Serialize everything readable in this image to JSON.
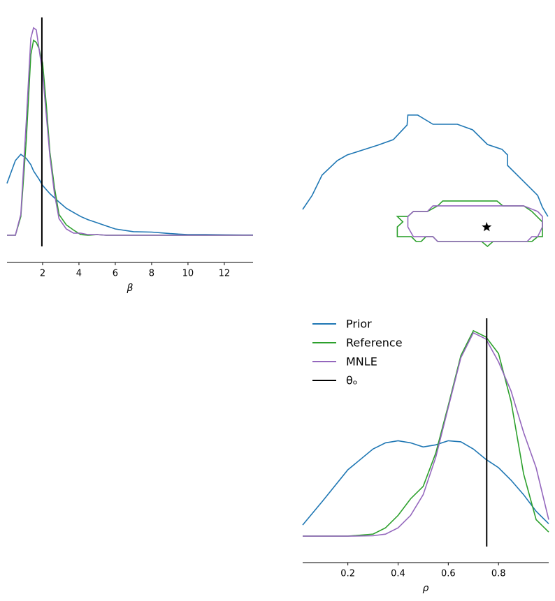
{
  "chart_data": [
    {
      "type": "line",
      "xlabel": "β",
      "x": [
        0.04,
        0.5,
        0.8,
        1.1,
        1.35,
        1.5,
        1.65,
        1.8,
        2,
        2.2,
        2.4,
        2.65,
        2.9,
        3.3,
        3.7,
        4.1,
        4.5,
        5,
        5.5,
        6,
        7,
        8,
        9,
        10,
        11,
        12,
        13,
        13.58
      ],
      "series": [
        {
          "name": "Prior",
          "color": "#1f77b4",
          "values": [
            0.25,
            0.36,
            0.39,
            0.37,
            0.34,
            0.31,
            0.29,
            0.27,
            0.24,
            0.22,
            0.2,
            0.18,
            0.16,
            0.13,
            0.11,
            0.09,
            0.075,
            0.06,
            0.045,
            0.03,
            0.017,
            0.015,
            0.008,
            0.003,
            0.003,
            0.002,
            0.001,
            0.001
          ]
        },
        {
          "name": "Reference",
          "color": "#2ca02c",
          "values": [
            0,
            0,
            0.09,
            0.46,
            0.87,
            0.94,
            0.93,
            0.9,
            0.83,
            0.63,
            0.4,
            0.23,
            0.1,
            0.05,
            0.025,
            0.003,
            0,
            0.003,
            0,
            0,
            0,
            0,
            0,
            0,
            0,
            0,
            0,
            0
          ]
        },
        {
          "name": "MNLE",
          "color": "#9467bd",
          "values": [
            0,
            0,
            0.1,
            0.55,
            0.95,
            1.0,
            0.99,
            0.9,
            0.78,
            0.58,
            0.38,
            0.2,
            0.08,
            0.03,
            0.01,
            0.01,
            0.003,
            0.003,
            0,
            0,
            0,
            0,
            0,
            0,
            0,
            0,
            0,
            0
          ]
        }
      ],
      "reference_line": {
        "value": 1.96,
        "color": "#000000"
      },
      "xlim": [
        0.04,
        13.58
      ],
      "xticks": [
        2,
        4,
        6,
        8,
        10,
        12
      ],
      "ylim": [
        -0.054,
        1.05
      ]
    },
    {
      "type": "contour",
      "series": [
        {
          "name": "Prior",
          "color": "#1f77b4",
          "closed": false,
          "x": [
            0.02,
            0.058,
            0.097,
            0.158,
            0.197,
            0.258,
            0.319,
            0.381,
            0.436,
            0.439,
            0.478,
            0.539,
            0.636,
            0.697,
            0.756,
            0.814,
            0.836,
            0.836,
            0.956,
            0.975,
            0.997
          ],
          "y": [
            2.94,
            3.72,
            4.84,
            5.65,
            5.96,
            6.23,
            6.5,
            6.81,
            7.62,
            8.17,
            8.17,
            7.66,
            7.66,
            7.35,
            6.54,
            6.27,
            5.96,
            5.38,
            3.72,
            3.06,
            2.55
          ]
        },
        {
          "name": "Reference",
          "color": "#2ca02c",
          "closed": true,
          "x": [
            0.397,
            0.419,
            0.397,
            0.397,
            0.453,
            0.472,
            0.492,
            0.511,
            0.539,
            0.558,
            0.733,
            0.756,
            0.778,
            0.933,
            0.956,
            0.975,
            0.975,
            0.933,
            0.9,
            0.817,
            0.794,
            0.578,
            0.558,
            0.517,
            0.461,
            0.439
          ],
          "y": [
            2.55,
            2.25,
            1.97,
            1.43,
            1.43,
            1.16,
            1.16,
            1.43,
            1.43,
            1.16,
            1.16,
            0.89,
            1.16,
            1.16,
            1.43,
            1.43,
            2.25,
            2.83,
            3.14,
            3.14,
            3.41,
            3.41,
            3.14,
            2.83,
            2.83,
            2.55
          ]
        },
        {
          "name": "MNLE",
          "color": "#9467bd",
          "closed": true,
          "x": [
            0.439,
            0.461,
            0.517,
            0.539,
            0.9,
            0.956,
            0.975,
            0.975,
            0.956,
            0.933,
            0.914,
            0.558,
            0.539,
            0.461,
            0.439
          ],
          "y": [
            2.55,
            2.83,
            2.83,
            3.14,
            3.14,
            2.83,
            2.55,
            1.97,
            1.43,
            1.43,
            1.16,
            1.16,
            1.43,
            1.43,
            1.97
          ]
        }
      ],
      "star": {
        "x": 0.753,
        "y": 1.96,
        "color": "#000000"
      },
      "xlim": [
        0.02,
        1.0
      ],
      "ylim": [
        0.04,
        13.58
      ]
    },
    {
      "type": "line",
      "xlabel": "ρ",
      "x": [
        0.02,
        0.1,
        0.2,
        0.3,
        0.35,
        0.4,
        0.45,
        0.5,
        0.55,
        0.6,
        0.65,
        0.7,
        0.75,
        0.8,
        0.85,
        0.9,
        0.95,
        1.0
      ],
      "series": [
        {
          "name": "Prior",
          "color": "#1f77b4",
          "values": [
            0.054,
            0.17,
            0.32,
            0.42,
            0.45,
            0.46,
            0.45,
            0.43,
            0.44,
            0.46,
            0.455,
            0.42,
            0.37,
            0.33,
            0.27,
            0.2,
            0.12,
            0.06
          ]
        },
        {
          "name": "Reference",
          "color": "#2ca02c",
          "values": [
            0,
            0,
            0,
            0.01,
            0.04,
            0.1,
            0.18,
            0.24,
            0.4,
            0.63,
            0.87,
            0.99,
            0.96,
            0.88,
            0.65,
            0.3,
            0.08,
            0.02
          ]
        },
        {
          "name": "MNLE",
          "color": "#9467bd",
          "values": [
            0,
            0,
            0,
            0.002,
            0.01,
            0.04,
            0.1,
            0.2,
            0.38,
            0.62,
            0.86,
            0.98,
            0.95,
            0.84,
            0.7,
            0.5,
            0.33,
            0.08
          ]
        }
      ],
      "reference_line": {
        "name": "θₒ",
        "value": 0.753,
        "color": "#000000"
      },
      "legend": "upper left",
      "xlim": [
        0.02,
        1.0
      ],
      "xticks": [
        0.2,
        0.4,
        0.6,
        0.8
      ],
      "ylim": [
        -0.05,
        1.05
      ]
    }
  ]
}
